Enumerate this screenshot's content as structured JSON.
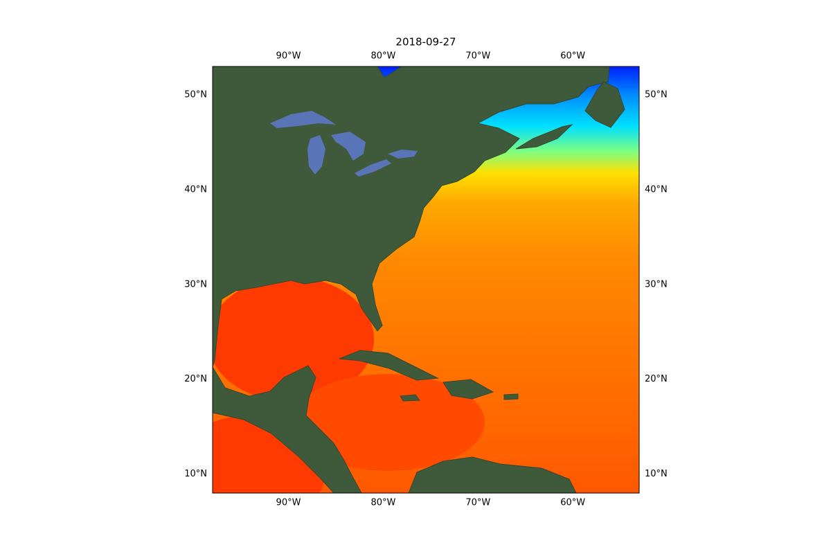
{
  "chart_data": {
    "type": "map",
    "title": "2018-09-27",
    "xlim": [
      -98,
      -53
    ],
    "ylim": [
      8,
      53
    ],
    "xticks": [
      {
        "value": -90,
        "label": "90°W"
      },
      {
        "value": -80,
        "label": "80°W"
      },
      {
        "value": -70,
        "label": "70°W"
      },
      {
        "value": -60,
        "label": "60°W"
      }
    ],
    "yticks": [
      {
        "value": 10,
        "label": "10°N"
      },
      {
        "value": 20,
        "label": "20°N"
      },
      {
        "value": 30,
        "label": "30°N"
      },
      {
        "value": 40,
        "label": "40°N"
      },
      {
        "value": 50,
        "label": "50°N"
      }
    ]
  }
}
